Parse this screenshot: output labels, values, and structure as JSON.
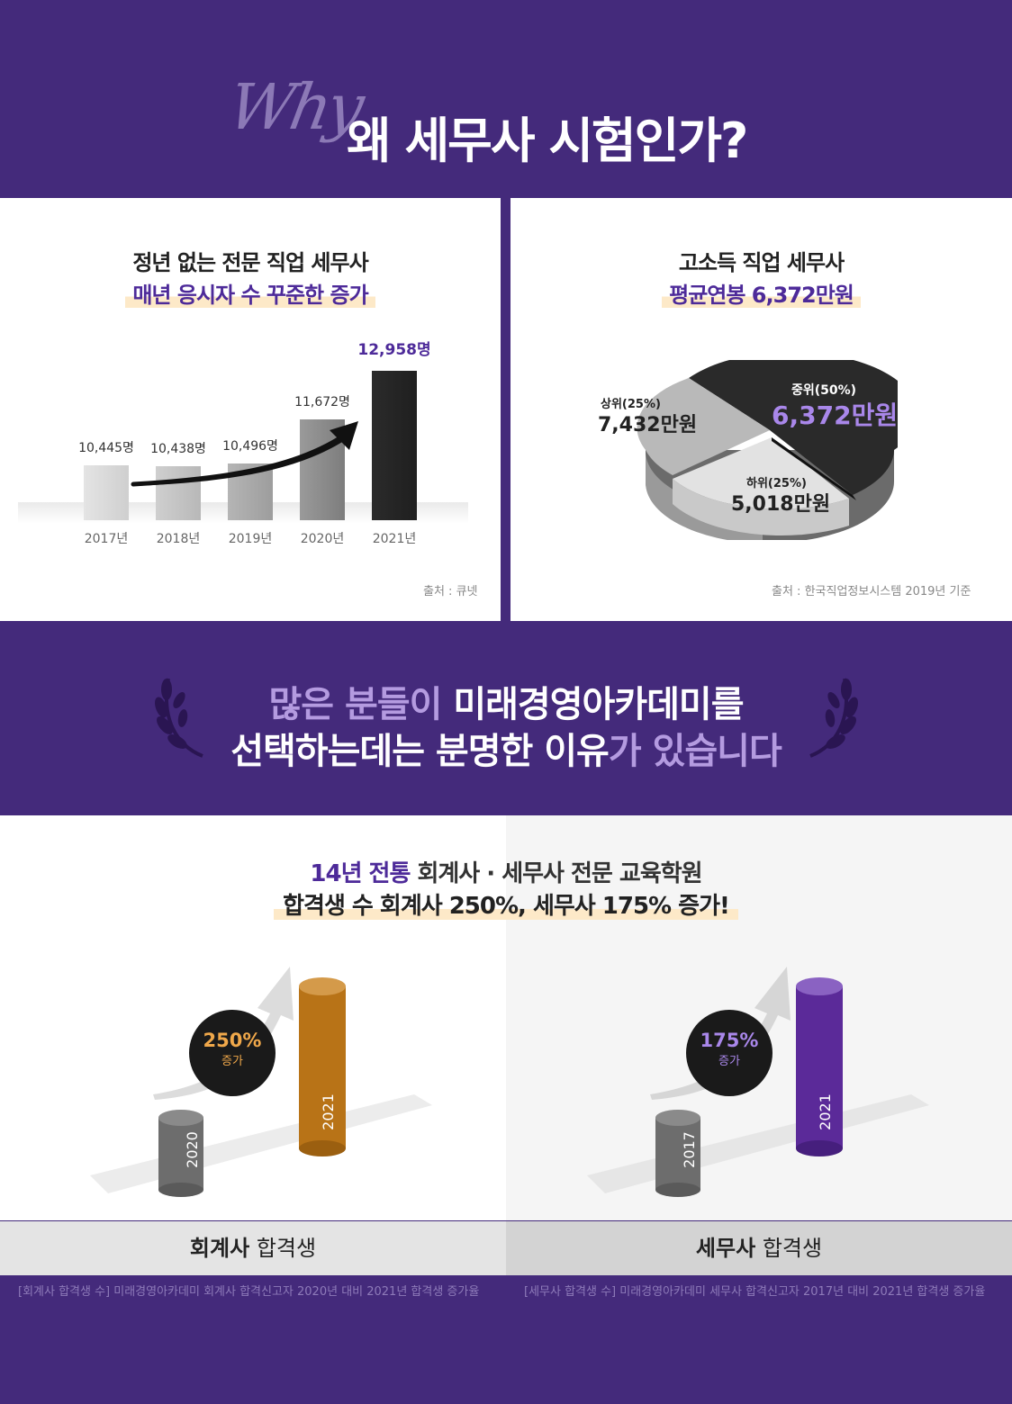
{
  "header": {
    "why": "Why",
    "title": "왜 세무사 시험인가?"
  },
  "left_panel": {
    "title": "정년 없는 전문 직업 세무사",
    "subtitle": "매년 응시자 수 꾸준한 증가",
    "source": "출처 : 큐넷"
  },
  "right_panel": {
    "title": "고소득 직업 세무사",
    "subtitle": "평균연봉 6,372만원",
    "source": "출처 : 한국직업정보시스템 2019년 기준",
    "top": {
      "rank": "상위(25%)",
      "value": "7,432만원"
    },
    "mid": {
      "rank": "중위(50%)",
      "value": "6,372만원"
    },
    "low": {
      "rank": "하위(25%)",
      "value": "5,018만원"
    }
  },
  "chart_data": [
    {
      "type": "bar",
      "categories": [
        "2017년",
        "2018년",
        "2019년",
        "2020년",
        "2021년"
      ],
      "values": [
        10445,
        10438,
        10496,
        11672,
        12958
      ],
      "value_labels": [
        "10,445명",
        "10,438명",
        "10,496명",
        "11,672명",
        "12,958명"
      ]
    },
    {
      "type": "pie",
      "slices": [
        {
          "label": "상위(25%)",
          "value": 25,
          "amount": "7,432만원"
        },
        {
          "label": "중위(50%)",
          "value": 50,
          "amount": "6,372만원"
        },
        {
          "label": "하위(25%)",
          "value": 25,
          "amount": "5,018만원"
        }
      ]
    }
  ],
  "mid": {
    "line1_a": "많은 분들이 ",
    "line1_b": "미래경영아카데미를",
    "line2_a": "선택하는데는 분명한 이유",
    "line2_b": "가 있습니다"
  },
  "bottom": {
    "head1_a": "14년 전통 ",
    "head1_b": "회계사 · 세무사 전문 교육학원",
    "head2": "합격생 수 회계사 250%, 세무사 175% 증가!",
    "left": {
      "pct": "250%",
      "inc": "증가",
      "year_from": "2020",
      "year_to": "2021",
      "caption_bold": "회계사",
      "caption": "합격생",
      "foot": "[회계사 합격생 수] 미래경영아카데미 회계사 합격신고자 2020년 대비 2021년 합격생 증가율"
    },
    "right": {
      "pct": "175%",
      "inc": "증가",
      "year_from": "2017",
      "year_to": "2021",
      "caption_bold": "세무사",
      "caption": "합격생",
      "foot": "[세무사 합격생 수] 미래경영아카데미 세무사 합격신고자 2017년 대비 2021년 합격생 증가율"
    }
  },
  "colors": {
    "purple": "#442a7b",
    "accent": "#4d2a99",
    "orange": "#c27d1e",
    "violet": "#5b2a99"
  }
}
